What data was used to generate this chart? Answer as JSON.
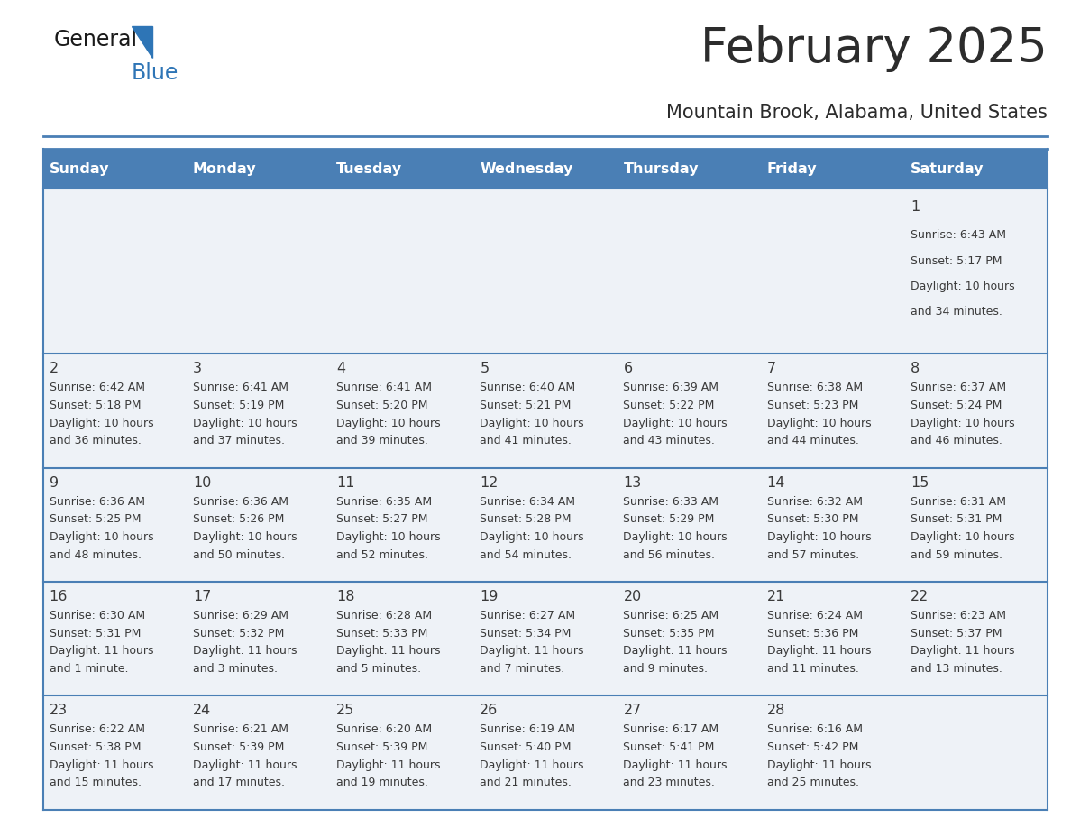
{
  "title": "February 2025",
  "subtitle": "Mountain Brook, Alabama, United States",
  "title_color": "#2c2c2c",
  "subtitle_color": "#2c2c2c",
  "header_bg_color": "#4a7fb5",
  "header_text_color": "#ffffff",
  "cell_bg_color": "#eef2f7",
  "cell_bg_white": "#ffffff",
  "cell_border_color": "#4a7fb5",
  "day_headers": [
    "Sunday",
    "Monday",
    "Tuesday",
    "Wednesday",
    "Thursday",
    "Friday",
    "Saturday"
  ],
  "logo_text_general": "General",
  "logo_text_blue": "Blue",
  "calendar": [
    [
      null,
      null,
      null,
      null,
      null,
      null,
      {
        "day": "1",
        "sunrise": "6:43 AM",
        "sunset": "5:17 PM",
        "daylight_line1": "Daylight: 10 hours",
        "daylight_line2": "and 34 minutes."
      }
    ],
    [
      {
        "day": "2",
        "sunrise": "6:42 AM",
        "sunset": "5:18 PM",
        "daylight_line1": "Daylight: 10 hours",
        "daylight_line2": "and 36 minutes."
      },
      {
        "day": "3",
        "sunrise": "6:41 AM",
        "sunset": "5:19 PM",
        "daylight_line1": "Daylight: 10 hours",
        "daylight_line2": "and 37 minutes."
      },
      {
        "day": "4",
        "sunrise": "6:41 AM",
        "sunset": "5:20 PM",
        "daylight_line1": "Daylight: 10 hours",
        "daylight_line2": "and 39 minutes."
      },
      {
        "day": "5",
        "sunrise": "6:40 AM",
        "sunset": "5:21 PM",
        "daylight_line1": "Daylight: 10 hours",
        "daylight_line2": "and 41 minutes."
      },
      {
        "day": "6",
        "sunrise": "6:39 AM",
        "sunset": "5:22 PM",
        "daylight_line1": "Daylight: 10 hours",
        "daylight_line2": "and 43 minutes."
      },
      {
        "day": "7",
        "sunrise": "6:38 AM",
        "sunset": "5:23 PM",
        "daylight_line1": "Daylight: 10 hours",
        "daylight_line2": "and 44 minutes."
      },
      {
        "day": "8",
        "sunrise": "6:37 AM",
        "sunset": "5:24 PM",
        "daylight_line1": "Daylight: 10 hours",
        "daylight_line2": "and 46 minutes."
      }
    ],
    [
      {
        "day": "9",
        "sunrise": "6:36 AM",
        "sunset": "5:25 PM",
        "daylight_line1": "Daylight: 10 hours",
        "daylight_line2": "and 48 minutes."
      },
      {
        "day": "10",
        "sunrise": "6:36 AM",
        "sunset": "5:26 PM",
        "daylight_line1": "Daylight: 10 hours",
        "daylight_line2": "and 50 minutes."
      },
      {
        "day": "11",
        "sunrise": "6:35 AM",
        "sunset": "5:27 PM",
        "daylight_line1": "Daylight: 10 hours",
        "daylight_line2": "and 52 minutes."
      },
      {
        "day": "12",
        "sunrise": "6:34 AM",
        "sunset": "5:28 PM",
        "daylight_line1": "Daylight: 10 hours",
        "daylight_line2": "and 54 minutes."
      },
      {
        "day": "13",
        "sunrise": "6:33 AM",
        "sunset": "5:29 PM",
        "daylight_line1": "Daylight: 10 hours",
        "daylight_line2": "and 56 minutes."
      },
      {
        "day": "14",
        "sunrise": "6:32 AM",
        "sunset": "5:30 PM",
        "daylight_line1": "Daylight: 10 hours",
        "daylight_line2": "and 57 minutes."
      },
      {
        "day": "15",
        "sunrise": "6:31 AM",
        "sunset": "5:31 PM",
        "daylight_line1": "Daylight: 10 hours",
        "daylight_line2": "and 59 minutes."
      }
    ],
    [
      {
        "day": "16",
        "sunrise": "6:30 AM",
        "sunset": "5:31 PM",
        "daylight_line1": "Daylight: 11 hours",
        "daylight_line2": "and 1 minute."
      },
      {
        "day": "17",
        "sunrise": "6:29 AM",
        "sunset": "5:32 PM",
        "daylight_line1": "Daylight: 11 hours",
        "daylight_line2": "and 3 minutes."
      },
      {
        "day": "18",
        "sunrise": "6:28 AM",
        "sunset": "5:33 PM",
        "daylight_line1": "Daylight: 11 hours",
        "daylight_line2": "and 5 minutes."
      },
      {
        "day": "19",
        "sunrise": "6:27 AM",
        "sunset": "5:34 PM",
        "daylight_line1": "Daylight: 11 hours",
        "daylight_line2": "and 7 minutes."
      },
      {
        "day": "20",
        "sunrise": "6:25 AM",
        "sunset": "5:35 PM",
        "daylight_line1": "Daylight: 11 hours",
        "daylight_line2": "and 9 minutes."
      },
      {
        "day": "21",
        "sunrise": "6:24 AM",
        "sunset": "5:36 PM",
        "daylight_line1": "Daylight: 11 hours",
        "daylight_line2": "and 11 minutes."
      },
      {
        "day": "22",
        "sunrise": "6:23 AM",
        "sunset": "5:37 PM",
        "daylight_line1": "Daylight: 11 hours",
        "daylight_line2": "and 13 minutes."
      }
    ],
    [
      {
        "day": "23",
        "sunrise": "6:22 AM",
        "sunset": "5:38 PM",
        "daylight_line1": "Daylight: 11 hours",
        "daylight_line2": "and 15 minutes."
      },
      {
        "day": "24",
        "sunrise": "6:21 AM",
        "sunset": "5:39 PM",
        "daylight_line1": "Daylight: 11 hours",
        "daylight_line2": "and 17 minutes."
      },
      {
        "day": "25",
        "sunrise": "6:20 AM",
        "sunset": "5:39 PM",
        "daylight_line1": "Daylight: 11 hours",
        "daylight_line2": "and 19 minutes."
      },
      {
        "day": "26",
        "sunrise": "6:19 AM",
        "sunset": "5:40 PM",
        "daylight_line1": "Daylight: 11 hours",
        "daylight_line2": "and 21 minutes."
      },
      {
        "day": "27",
        "sunrise": "6:17 AM",
        "sunset": "5:41 PM",
        "daylight_line1": "Daylight: 11 hours",
        "daylight_line2": "and 23 minutes."
      },
      {
        "day": "28",
        "sunrise": "6:16 AM",
        "sunset": "5:42 PM",
        "daylight_line1": "Daylight: 11 hours",
        "daylight_line2": "and 25 minutes."
      },
      null
    ]
  ],
  "figsize": [
    11.88,
    9.18
  ],
  "dpi": 100
}
